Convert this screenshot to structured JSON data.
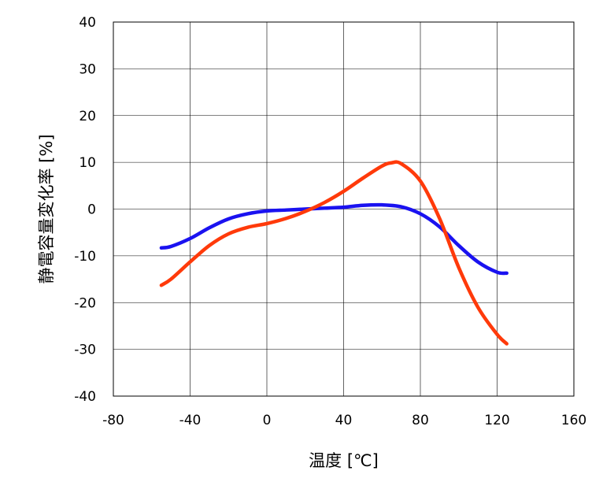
{
  "chart_data": {
    "type": "line",
    "title": "",
    "xlabel": "温度 [℃]",
    "ylabel": "静電容量変化率 [%]",
    "xlim": [
      -80,
      160
    ],
    "ylim": [
      -40,
      40
    ],
    "xticks": [
      -80,
      -40,
      0,
      40,
      80,
      120,
      160
    ],
    "yticks": [
      40,
      30,
      20,
      10,
      0,
      -10,
      -20,
      -30,
      -40
    ],
    "grid": true,
    "legend": "none",
    "series": [
      {
        "color": "#1a12f0",
        "x": [
          -55,
          -50,
          -40,
          -30,
          -20,
          -10,
          0,
          10,
          20,
          30,
          40,
          50,
          60,
          70,
          80,
          90,
          100,
          110,
          120,
          125
        ],
        "y": [
          -8.3,
          -8.0,
          -6.3,
          -4.0,
          -2.1,
          -1.0,
          -0.4,
          -0.2,
          0.0,
          0.2,
          0.4,
          0.8,
          0.9,
          0.5,
          -1.0,
          -3.8,
          -7.8,
          -11.3,
          -13.5,
          -13.7
        ]
      },
      {
        "color": "#ff3a0a",
        "x": [
          -55,
          -50,
          -40,
          -30,
          -20,
          -10,
          0,
          10,
          20,
          30,
          40,
          50,
          60,
          65,
          70,
          80,
          90,
          100,
          110,
          120,
          125
        ],
        "y": [
          -16.3,
          -15.0,
          -11.3,
          -7.8,
          -5.3,
          -3.9,
          -3.1,
          -2.0,
          -0.5,
          1.4,
          3.8,
          6.6,
          9.2,
          9.9,
          9.7,
          6.0,
          -2.0,
          -12.5,
          -21.0,
          -26.8,
          -28.8
        ]
      }
    ]
  }
}
